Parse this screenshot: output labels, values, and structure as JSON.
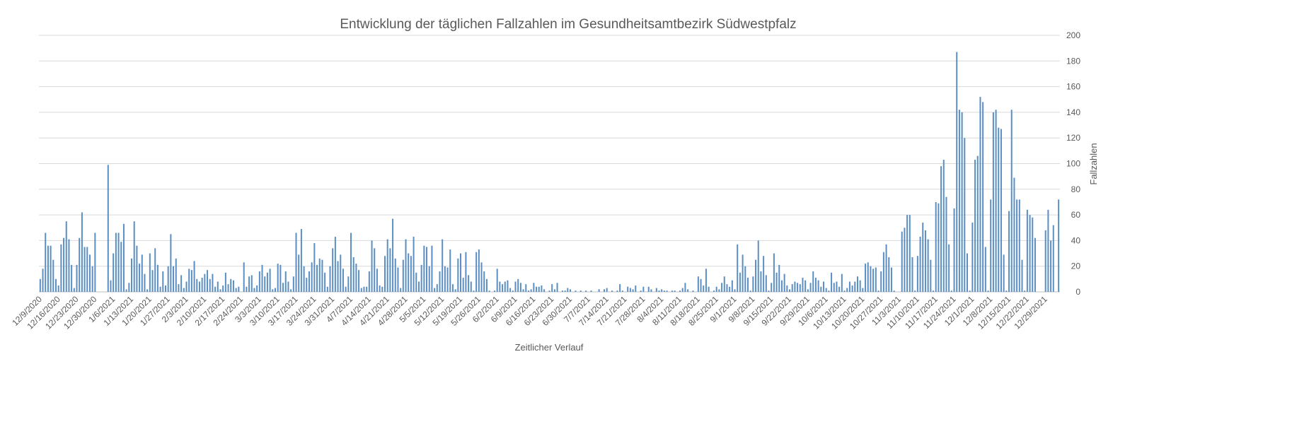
{
  "chart_data": {
    "type": "bar",
    "title": "Entwicklung der täglichen Fallzahlen im Gesundheitsamtbezirk Südwestpfalz",
    "xlabel": "Zeitlicher Verlauf",
    "ylabel": "Fallzahlen",
    "ylim": [
      0,
      200
    ],
    "y_ticks": [
      0,
      20,
      40,
      60,
      80,
      100,
      120,
      140,
      160,
      180,
      200
    ],
    "y_axis_side": "right",
    "grid": true,
    "bar_color": "#5b8ec2",
    "start_date": "12/9/2020",
    "x_tick_labels": [
      "12/9/2020",
      "12/16/2020",
      "12/23/2020",
      "12/30/2020",
      "1/6/2021",
      "1/13/2021",
      "1/20/2021",
      "1/27/2021",
      "2/3/2021",
      "2/10/2021",
      "2/17/2021",
      "2/24/2021",
      "3/3/2021",
      "3/10/2021",
      "3/17/2021",
      "3/24/2021",
      "3/31/2021",
      "4/7/2021",
      "4/14/2021",
      "4/21/2021",
      "4/28/2021",
      "5/5/2021",
      "5/12/2021",
      "5/19/2021",
      "5/26/2021",
      "6/2/2021",
      "6/9/2021",
      "6/16/2021",
      "6/23/2021",
      "6/30/2021",
      "7/7/2021",
      "7/14/2021",
      "7/21/2021",
      "7/28/2021",
      "8/4/2021",
      "8/11/2021",
      "8/18/2021",
      "8/25/2021",
      "9/1/2021",
      "9/8/2021",
      "9/15/2021",
      "9/22/2021",
      "9/29/2021",
      "10/6/2021",
      "10/13/2021",
      "10/20/2021",
      "10/27/2021",
      "11/3/2021",
      "11/10/2021",
      "11/17/2021",
      "11/24/2021",
      "12/1/2021",
      "12/8/2021",
      "12/15/2021",
      "12/22/2021",
      "12/29/2021"
    ],
    "values": [
      10,
      18,
      46,
      36,
      36,
      25,
      10,
      5,
      37,
      42,
      55,
      41,
      21,
      3,
      21,
      42,
      62,
      35,
      35,
      29,
      20,
      46,
      0,
      0,
      0,
      0,
      99,
      9,
      30,
      46,
      46,
      39,
      53,
      2,
      7,
      26,
      55,
      36,
      22,
      29,
      14,
      2,
      30,
      17,
      34,
      21,
      4,
      16,
      5,
      20,
      45,
      20,
      26,
      6,
      13,
      3,
      8,
      18,
      17,
      24,
      10,
      8,
      11,
      14,
      17,
      10,
      14,
      4,
      8,
      2,
      5,
      15,
      6,
      10,
      9,
      3,
      4,
      0,
      23,
      4,
      12,
      13,
      3,
      5,
      16,
      21,
      12,
      15,
      18,
      2,
      3,
      22,
      21,
      7,
      16,
      8,
      2,
      12,
      46,
      29,
      49,
      20,
      11,
      16,
      23,
      38,
      21,
      26,
      25,
      15,
      4,
      20,
      34,
      43,
      24,
      29,
      18,
      4,
      12,
      46,
      27,
      22,
      17,
      3,
      4,
      4,
      16,
      40,
      34,
      18,
      5,
      4,
      28,
      41,
      34,
      57,
      26,
      19,
      3,
      25,
      41,
      30,
      28,
      43,
      15,
      8,
      21,
      36,
      35,
      20,
      36,
      3,
      6,
      16,
      41,
      20,
      19,
      33,
      6,
      2,
      26,
      30,
      11,
      31,
      13,
      8,
      1,
      31,
      33,
      23,
      16,
      10,
      1,
      0,
      1,
      18,
      8,
      6,
      8,
      9,
      3,
      1,
      8,
      10,
      7,
      2,
      6,
      1,
      2,
      7,
      4,
      4,
      5,
      2,
      0,
      1,
      6,
      2,
      7,
      0,
      1,
      1,
      3,
      2,
      0,
      1,
      0,
      1,
      0,
      1,
      0,
      1,
      0,
      0,
      2,
      0,
      2,
      3,
      0,
      1,
      0,
      1,
      6,
      1,
      0,
      4,
      3,
      2,
      5,
      0,
      1,
      4,
      0,
      4,
      2,
      0,
      3,
      1,
      2,
      1,
      1,
      0,
      1,
      1,
      0,
      1,
      3,
      7,
      2,
      0,
      1,
      0,
      12,
      10,
      5,
      18,
      4,
      0,
      1,
      4,
      2,
      7,
      12,
      6,
      4,
      9,
      2,
      37,
      15,
      29,
      20,
      11,
      1,
      12,
      25,
      40,
      16,
      28,
      13,
      1,
      7,
      30,
      15,
      21,
      9,
      14,
      5,
      2,
      6,
      8,
      7,
      6,
      11,
      9,
      2,
      7,
      16,
      11,
      9,
      4,
      8,
      3,
      1,
      15,
      7,
      8,
      4,
      14,
      1,
      3,
      8,
      5,
      8,
      12,
      9,
      3,
      22,
      23,
      20,
      18,
      19,
      1,
      16,
      31,
      37,
      27,
      19,
      1,
      0,
      0,
      47,
      50,
      60,
      60,
      27,
      1,
      28,
      43,
      54,
      48,
      41,
      25,
      1,
      70,
      69,
      98,
      103,
      74,
      37,
      1,
      65,
      187,
      142,
      140,
      120,
      30,
      1,
      54,
      103,
      106,
      152,
      148,
      35,
      1,
      72,
      140,
      142,
      128,
      127,
      29,
      1,
      63,
      142,
      89,
      72,
      72,
      25,
      1,
      64,
      60,
      58,
      42,
      0,
      0,
      0,
      48,
      64,
      40,
      52,
      0,
      72
    ]
  }
}
